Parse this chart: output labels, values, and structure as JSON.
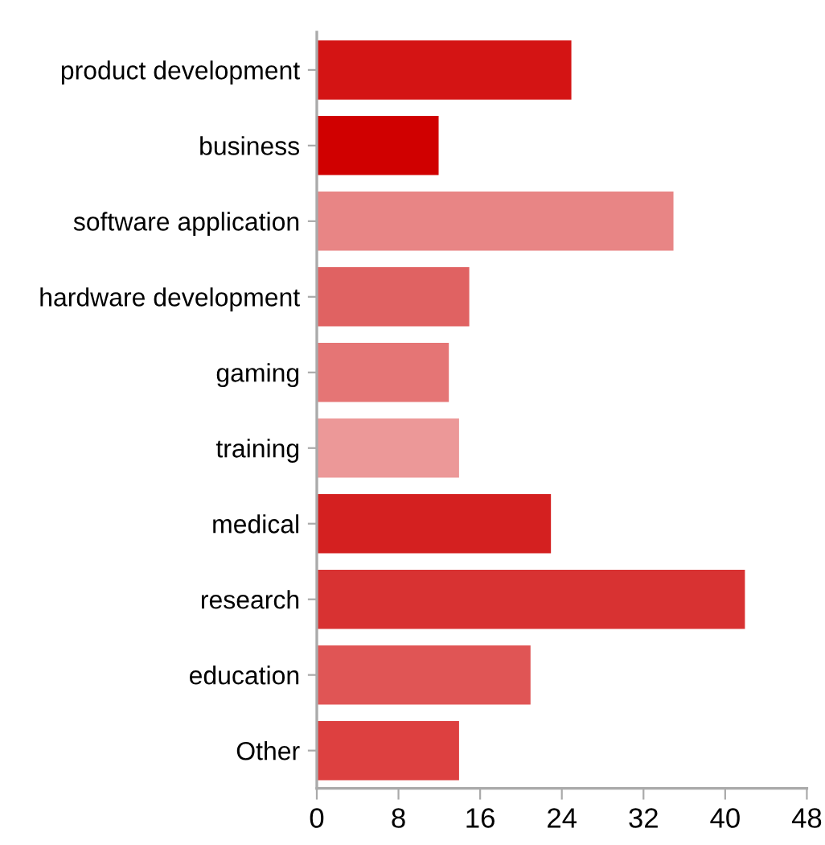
{
  "chart_data": {
    "type": "bar",
    "orientation": "horizontal",
    "categories": [
      "product development",
      "business",
      "software application",
      "hardware development",
      "gaming",
      "training",
      "medical",
      "research",
      "education",
      "Other"
    ],
    "values": [
      25,
      12,
      35,
      15,
      13,
      14,
      23,
      42,
      21,
      14
    ],
    "colors": [
      "#d41414",
      "#d00000",
      "#e88585",
      "#e06262",
      "#e57575",
      "#ec9898",
      "#d42020",
      "#d83232",
      "#e05555",
      "#dd4040"
    ],
    "xlim": [
      0,
      48
    ],
    "xticks": [
      0,
      8,
      16,
      24,
      32,
      40,
      48
    ],
    "grid": false,
    "legend": false
  }
}
